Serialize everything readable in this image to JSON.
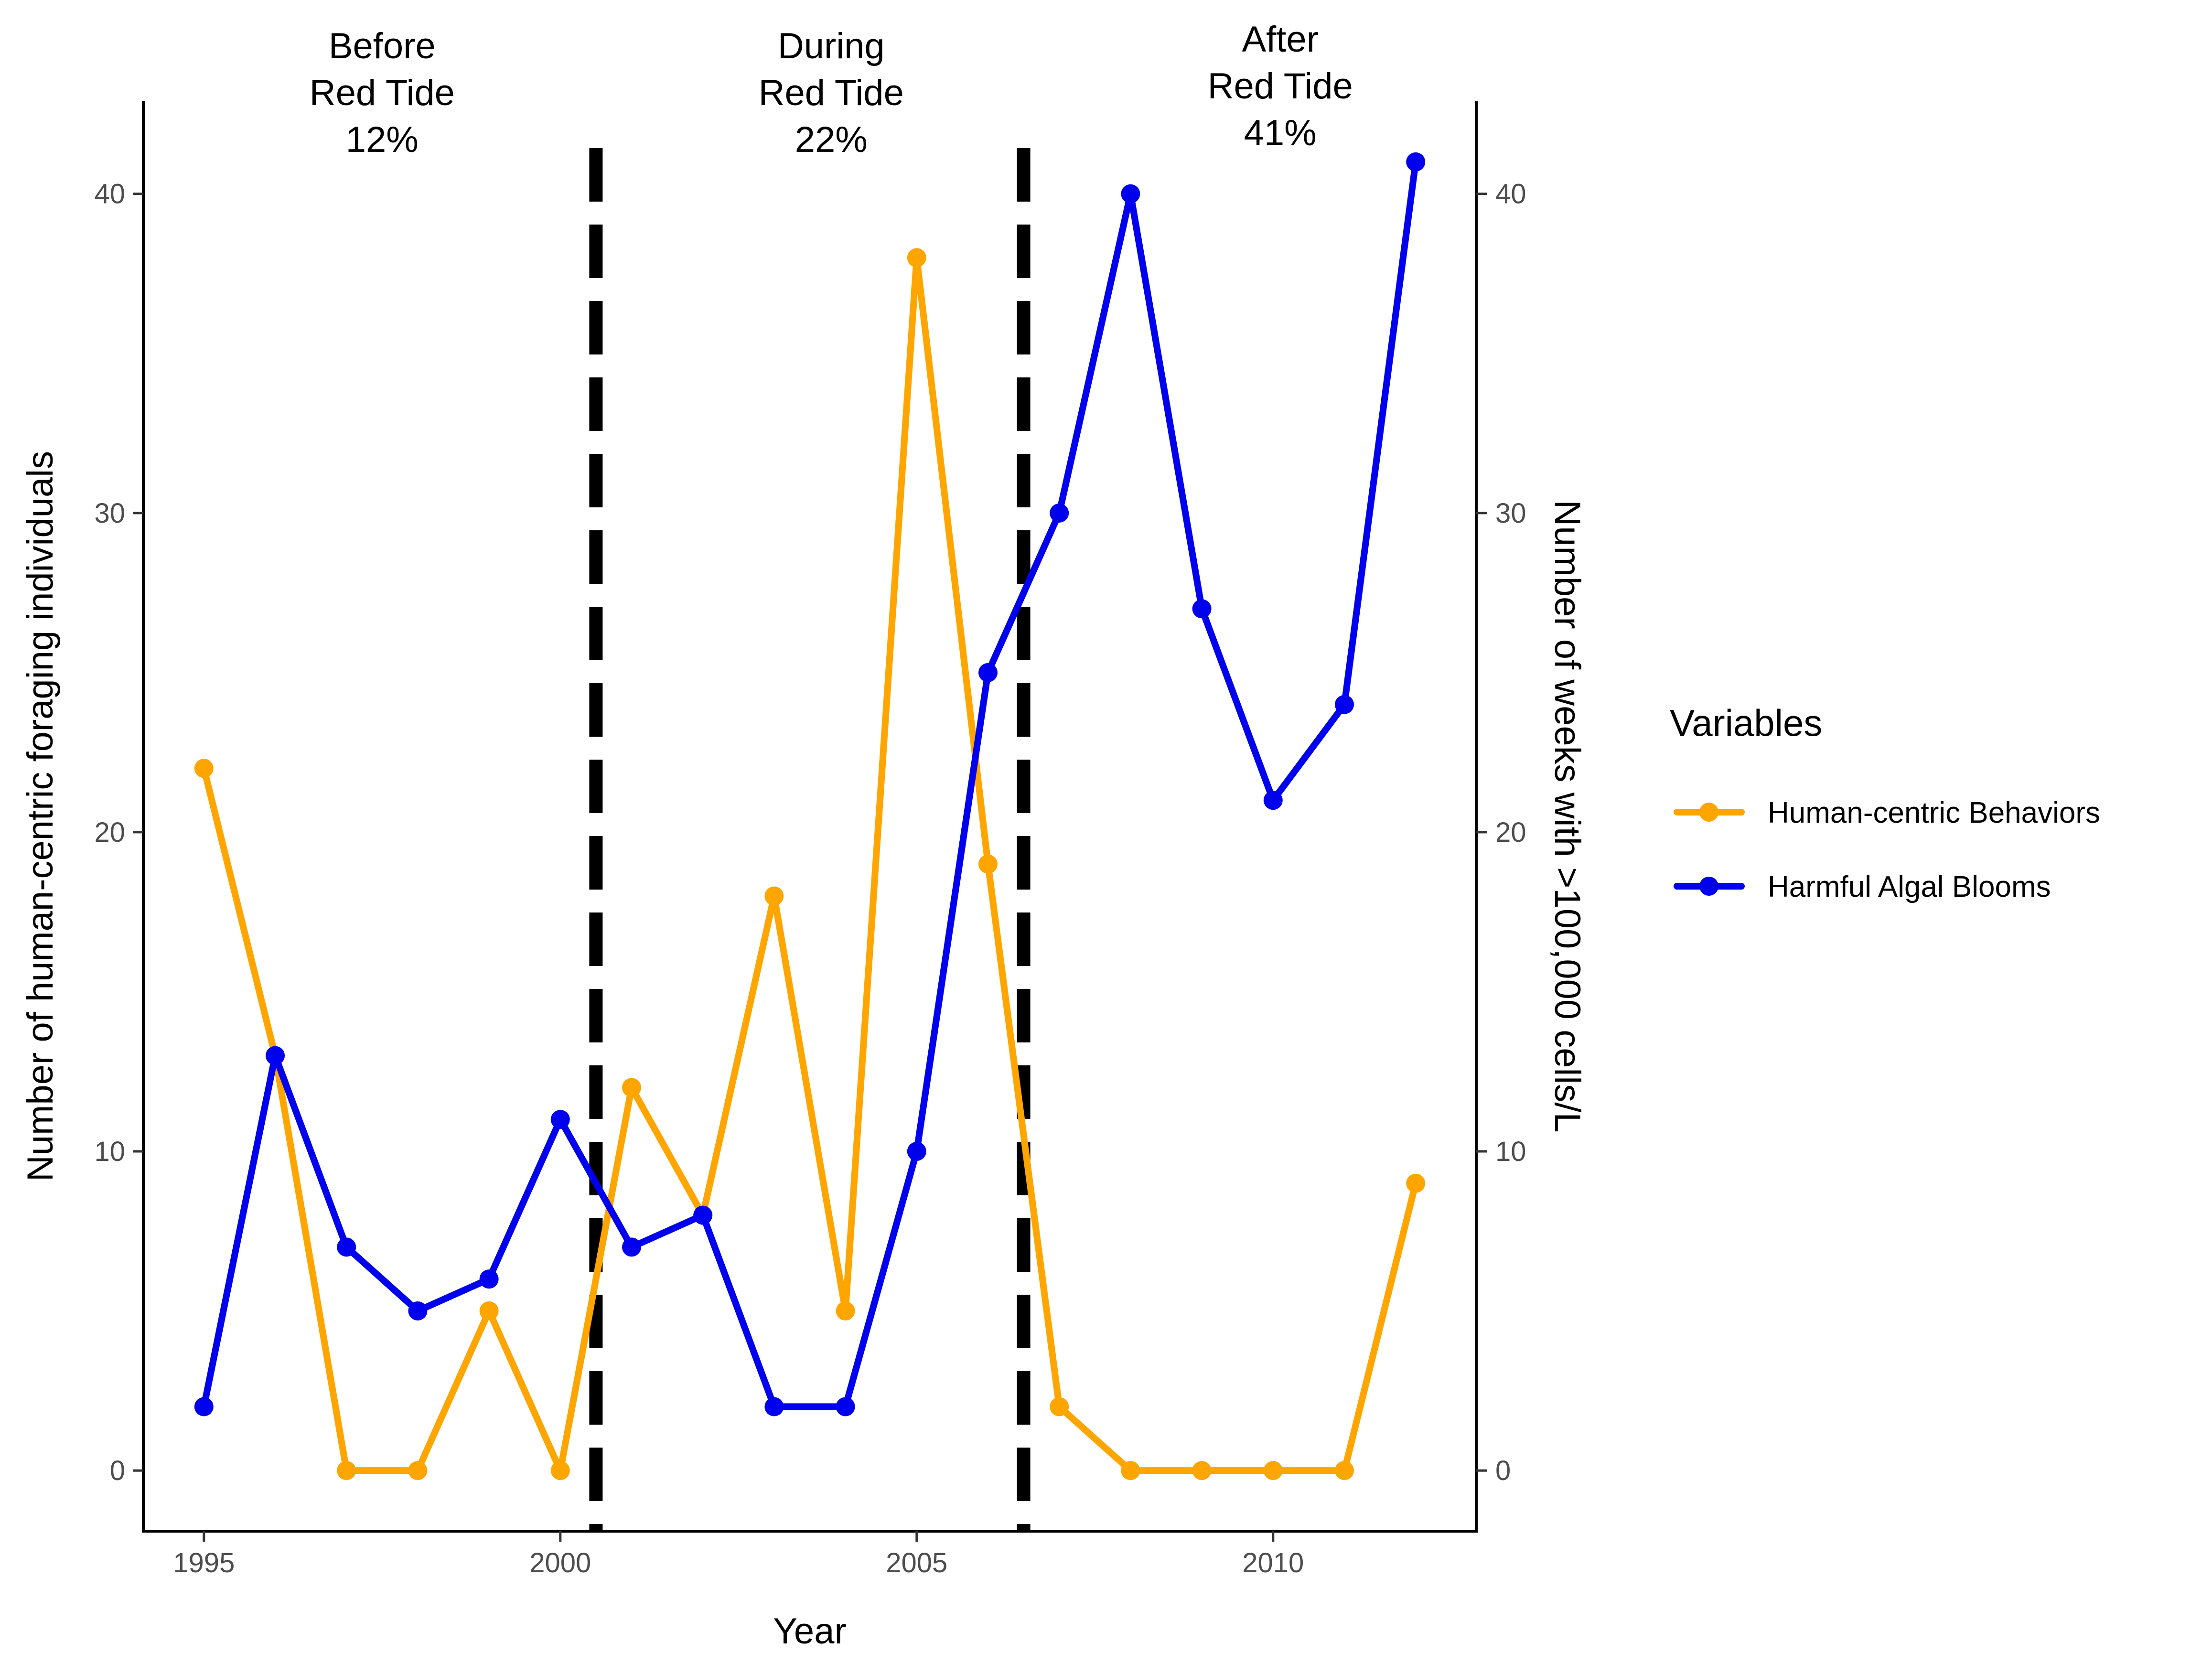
{
  "chart_data": {
    "type": "line",
    "x": [
      1995,
      1996,
      1997,
      1998,
      1999,
      2000,
      2001,
      2002,
      2003,
      2004,
      2005,
      2006,
      2007,
      2008,
      2009,
      2010,
      2011,
      2012
    ],
    "xlabel": "Year",
    "ylabel_left": "Number of human-centric foraging individuals",
    "ylabel_right": "Number of weeks with >100,000 cells/L",
    "xlim": [
      1994.15,
      2012.85
    ],
    "ylim": [
      -1.9,
      42.9
    ],
    "x_ticks": [
      1995,
      2000,
      2005,
      2010
    ],
    "y_ticks": [
      0,
      10,
      20,
      30,
      40
    ],
    "grid": false,
    "legend": {
      "title": "Variables",
      "placement": "right"
    },
    "series": [
      {
        "name": "Human-centric Behaviors",
        "color": "#FFA500",
        "values": [
          22,
          13,
          0,
          0,
          5,
          0,
          12,
          8,
          18,
          5,
          38,
          19,
          2,
          0,
          0,
          0,
          0,
          9
        ]
      },
      {
        "name": "Harmful Algal Blooms",
        "color": "#0000EE",
        "values": [
          2,
          13,
          7,
          5,
          6,
          11,
          7,
          8,
          2,
          2,
          10,
          25,
          30,
          40,
          27,
          21,
          24,
          41
        ]
      }
    ],
    "period_dividers": [
      2000.5,
      2006.5
    ],
    "periods": [
      {
        "lines": [
          "Before",
          "Red Tide",
          "12%"
        ],
        "x_center": 1997.5
      },
      {
        "lines": [
          "During",
          "Red Tide",
          "22%"
        ],
        "x_center": 2003.8
      },
      {
        "lines": [
          "After",
          "Red Tide",
          "41%"
        ],
        "x_center": 2010.1
      }
    ]
  }
}
